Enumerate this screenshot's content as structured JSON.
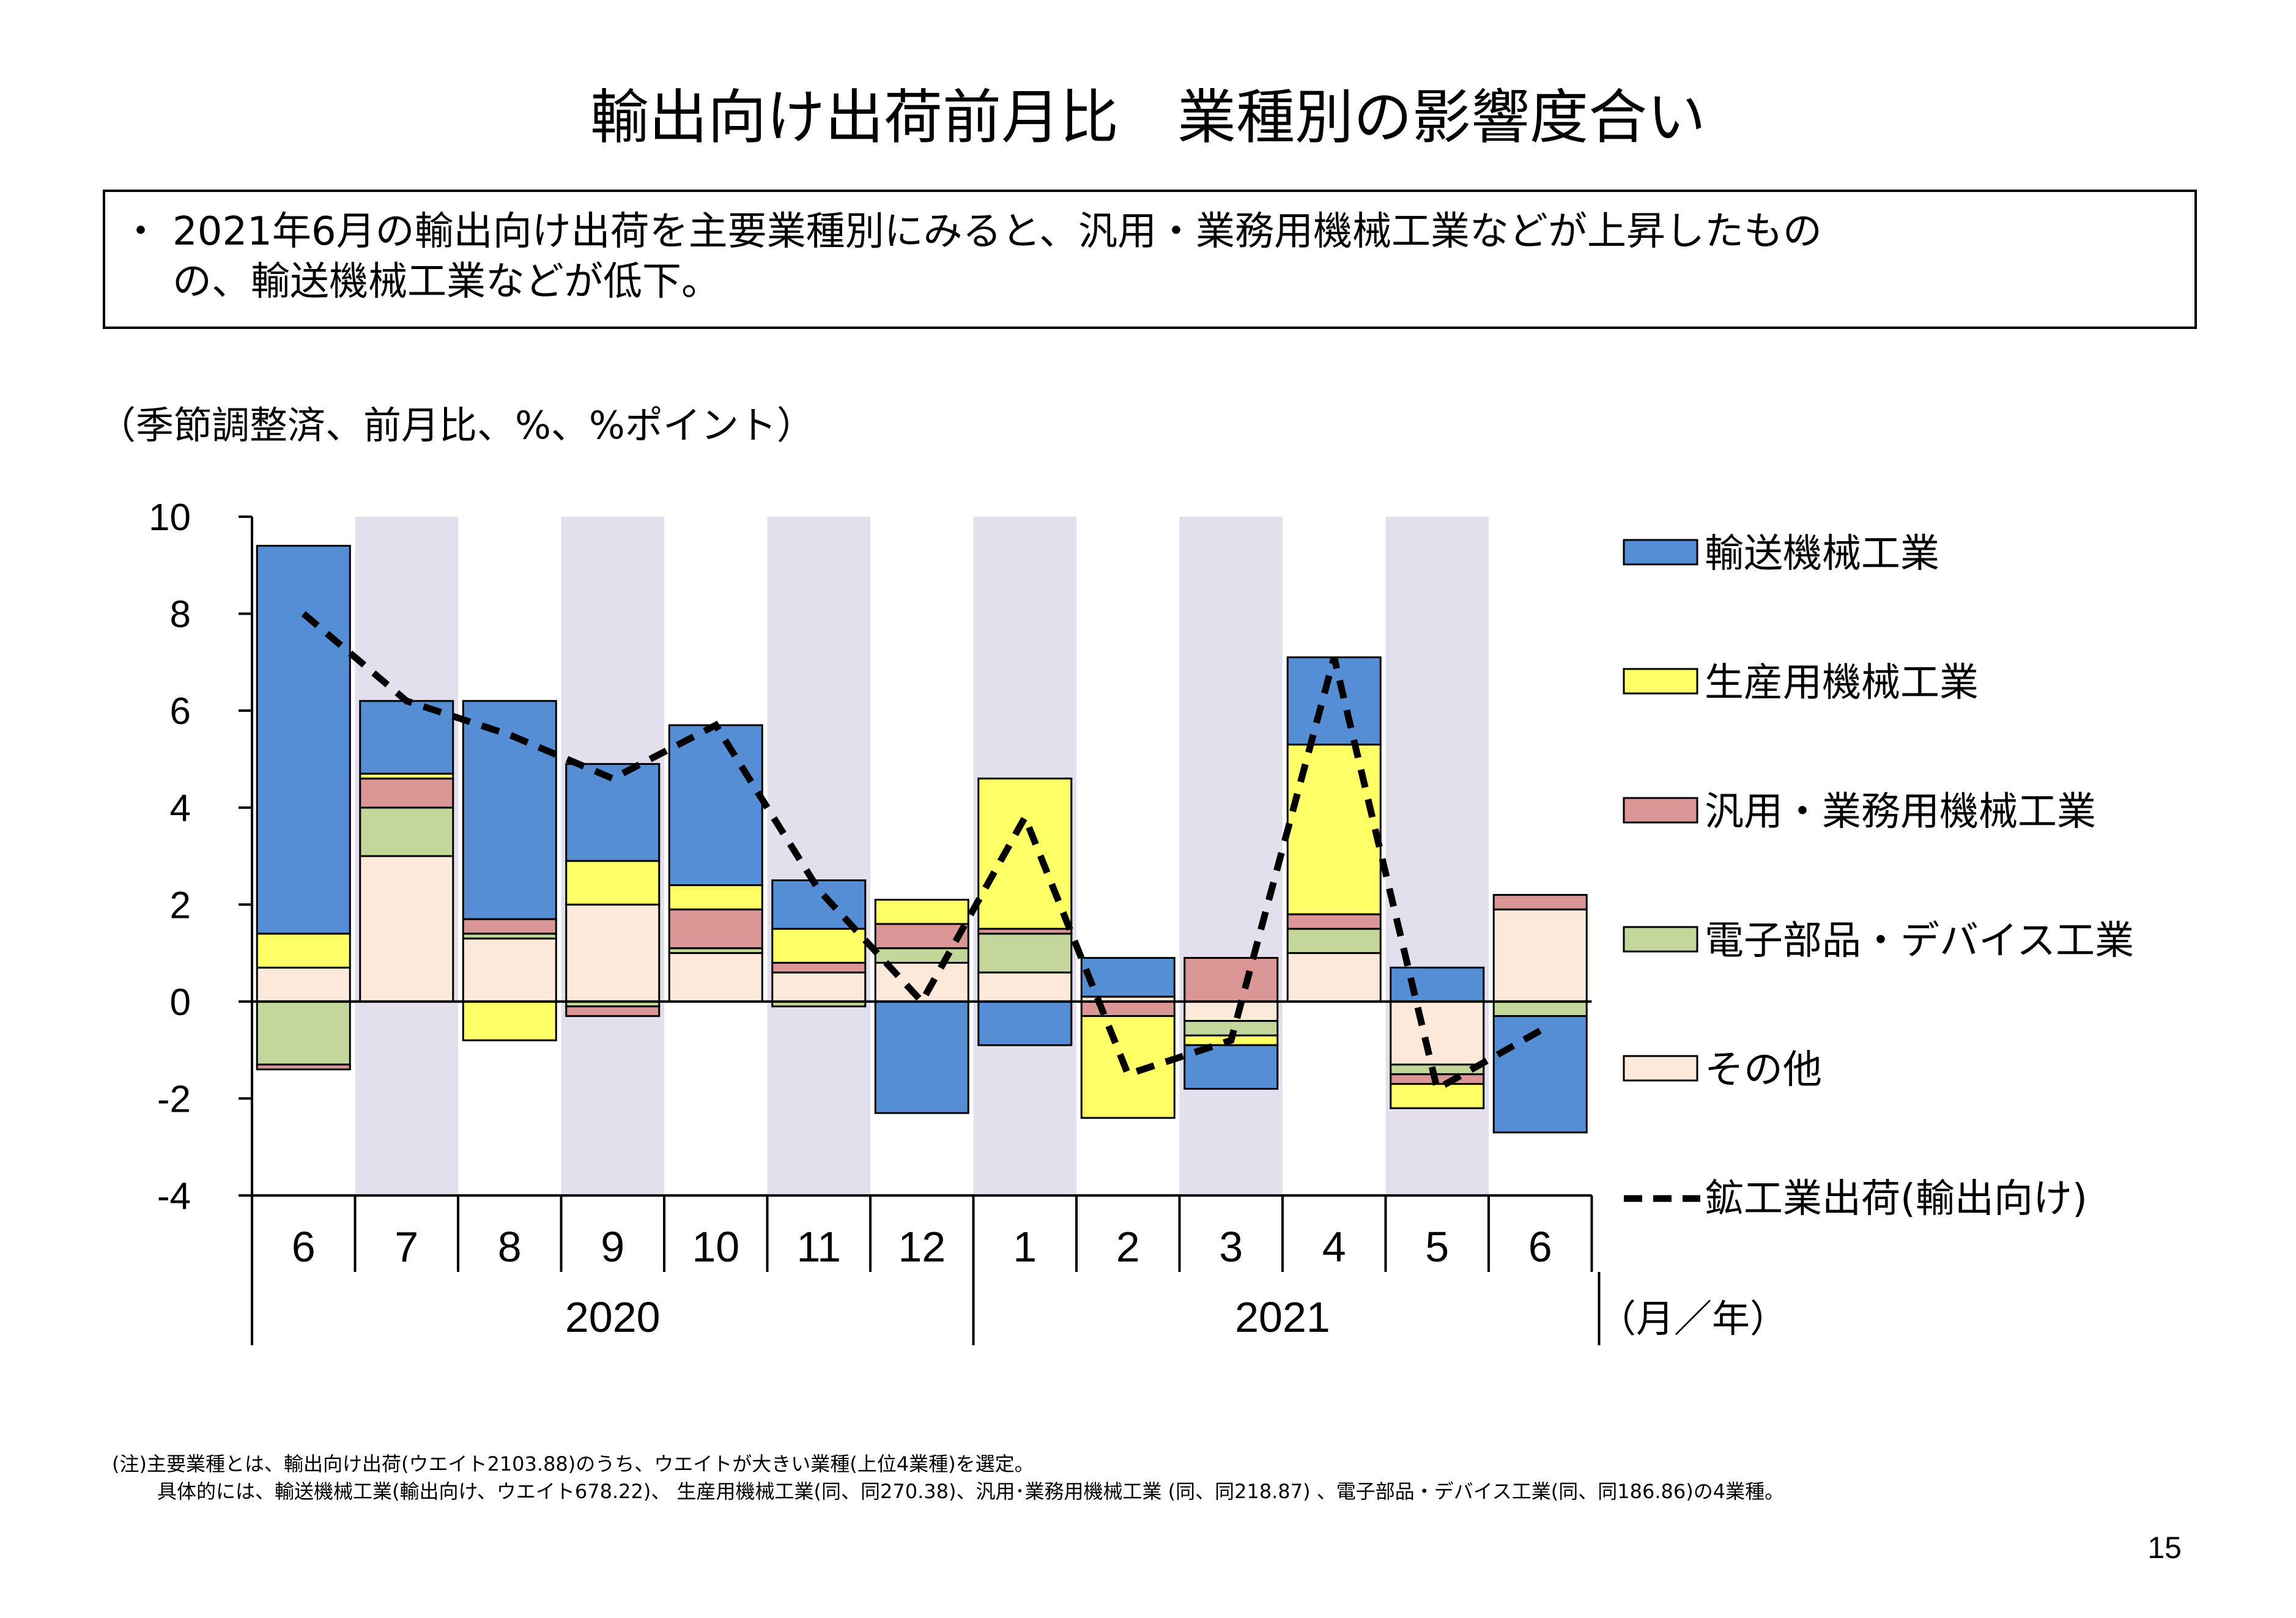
{
  "page": {
    "title": "輸出向け出荷前月比　業種別の影響度合い",
    "summary_bullet": "・",
    "summary_line1": "2021年6月の輸出向け出荷を主要業種別にみると、汎用・業務用機械工業などが上昇したもの",
    "summary_line2": "の、輸送機械工業などが低下。",
    "unit_label": "（季節調整済、前月比、%、%ポイント）",
    "axis_unit_label": "（月／年）",
    "note_line1": "(注)主要業種とは、輸出向け出荷(ウエイト2103.88)のうち、ウエイトが大きい業種(上位4業種)を選定。",
    "note_line2": "具体的には、輸送機械工業(輸出向け、ウエイト678.22)、 生産用機械工業(同、同270.38)、汎用･業務用機械工業 (同、同218.87) 、電子部品・デバイス工業(同、同186.86)の4業種。",
    "page_number": "15"
  },
  "chart_data": {
    "type": "bar",
    "stacked": true,
    "categories": [
      "6",
      "7",
      "8",
      "9",
      "10",
      "11",
      "12",
      "1",
      "2",
      "3",
      "4",
      "5",
      "6"
    ],
    "year_groups": [
      {
        "label": "2020",
        "start": 0,
        "end": 6
      },
      {
        "label": "2021",
        "start": 7,
        "end": 12
      }
    ],
    "ylim": [
      -4,
      10
    ],
    "yticks": [
      -4,
      -2,
      0,
      2,
      4,
      6,
      8,
      10
    ],
    "ytick_labels": [
      "-4",
      "-2",
      "0",
      "2",
      "4",
      "6",
      "8",
      "10"
    ],
    "shaded_categories": [
      1,
      3,
      5,
      7,
      9,
      11
    ],
    "shade_color": "#e4dfec",
    "series": [
      {
        "name": "その他",
        "color": "#fde9d9",
        "values": [
          0.7,
          3.0,
          1.3,
          2.0,
          1.0,
          0.6,
          0.8,
          0.6,
          0.1,
          -0.4,
          1.0,
          -1.3,
          1.9
        ]
      },
      {
        "name": "電子部品・デバイス工業",
        "color": "#c4d79b",
        "values": [
          -1.3,
          1.0,
          0.1,
          -0.1,
          0.1,
          -0.1,
          0.3,
          0.8,
          0.0,
          -0.3,
          0.5,
          -0.2,
          -0.3
        ]
      },
      {
        "name": "汎用・業務用機械工業",
        "color": "#da9694",
        "values": [
          -0.1,
          0.6,
          0.3,
          -0.2,
          0.8,
          0.2,
          0.5,
          0.1,
          -0.3,
          0.9,
          0.3,
          -0.2,
          0.3
        ]
      },
      {
        "name": "生産用機械工業",
        "color": "#ffff66",
        "values": [
          0.7,
          0.1,
          -0.8,
          0.9,
          0.5,
          0.7,
          0.5,
          3.1,
          -2.1,
          -0.2,
          3.5,
          -0.5,
          0.0
        ]
      },
      {
        "name": "輸送機械工業",
        "color": "#558ed5",
        "values": [
          8.0,
          1.5,
          4.5,
          2.0,
          3.3,
          1.0,
          -2.3,
          -0.9,
          0.8,
          -0.9,
          1.8,
          0.7,
          -2.4
        ]
      }
    ],
    "line": {
      "name": "鉱工業出荷(輸出向け)",
      "color": "#000000",
      "style": "dashed",
      "values": [
        8.0,
        6.2,
        5.5,
        4.6,
        5.7,
        2.3,
        0.0,
        3.8,
        -1.5,
        -0.8,
        7.1,
        -1.8,
        -0.6
      ]
    },
    "legend": {
      "position": "right",
      "items": [
        {
          "label": "輸送機械工業",
          "color": "#558ed5",
          "kind": "box"
        },
        {
          "label": "生産用機械工業",
          "color": "#ffff66",
          "kind": "box"
        },
        {
          "label": "汎用・業務用機械工業",
          "color": "#da9694",
          "kind": "box"
        },
        {
          "label": "電子部品・デバイス工業",
          "color": "#c4d79b",
          "kind": "box"
        },
        {
          "label": "その他",
          "color": "#fde9d9",
          "kind": "box"
        },
        {
          "label": "鉱工業出荷(輸出向け)",
          "color": "#000000",
          "kind": "dash"
        }
      ]
    }
  }
}
